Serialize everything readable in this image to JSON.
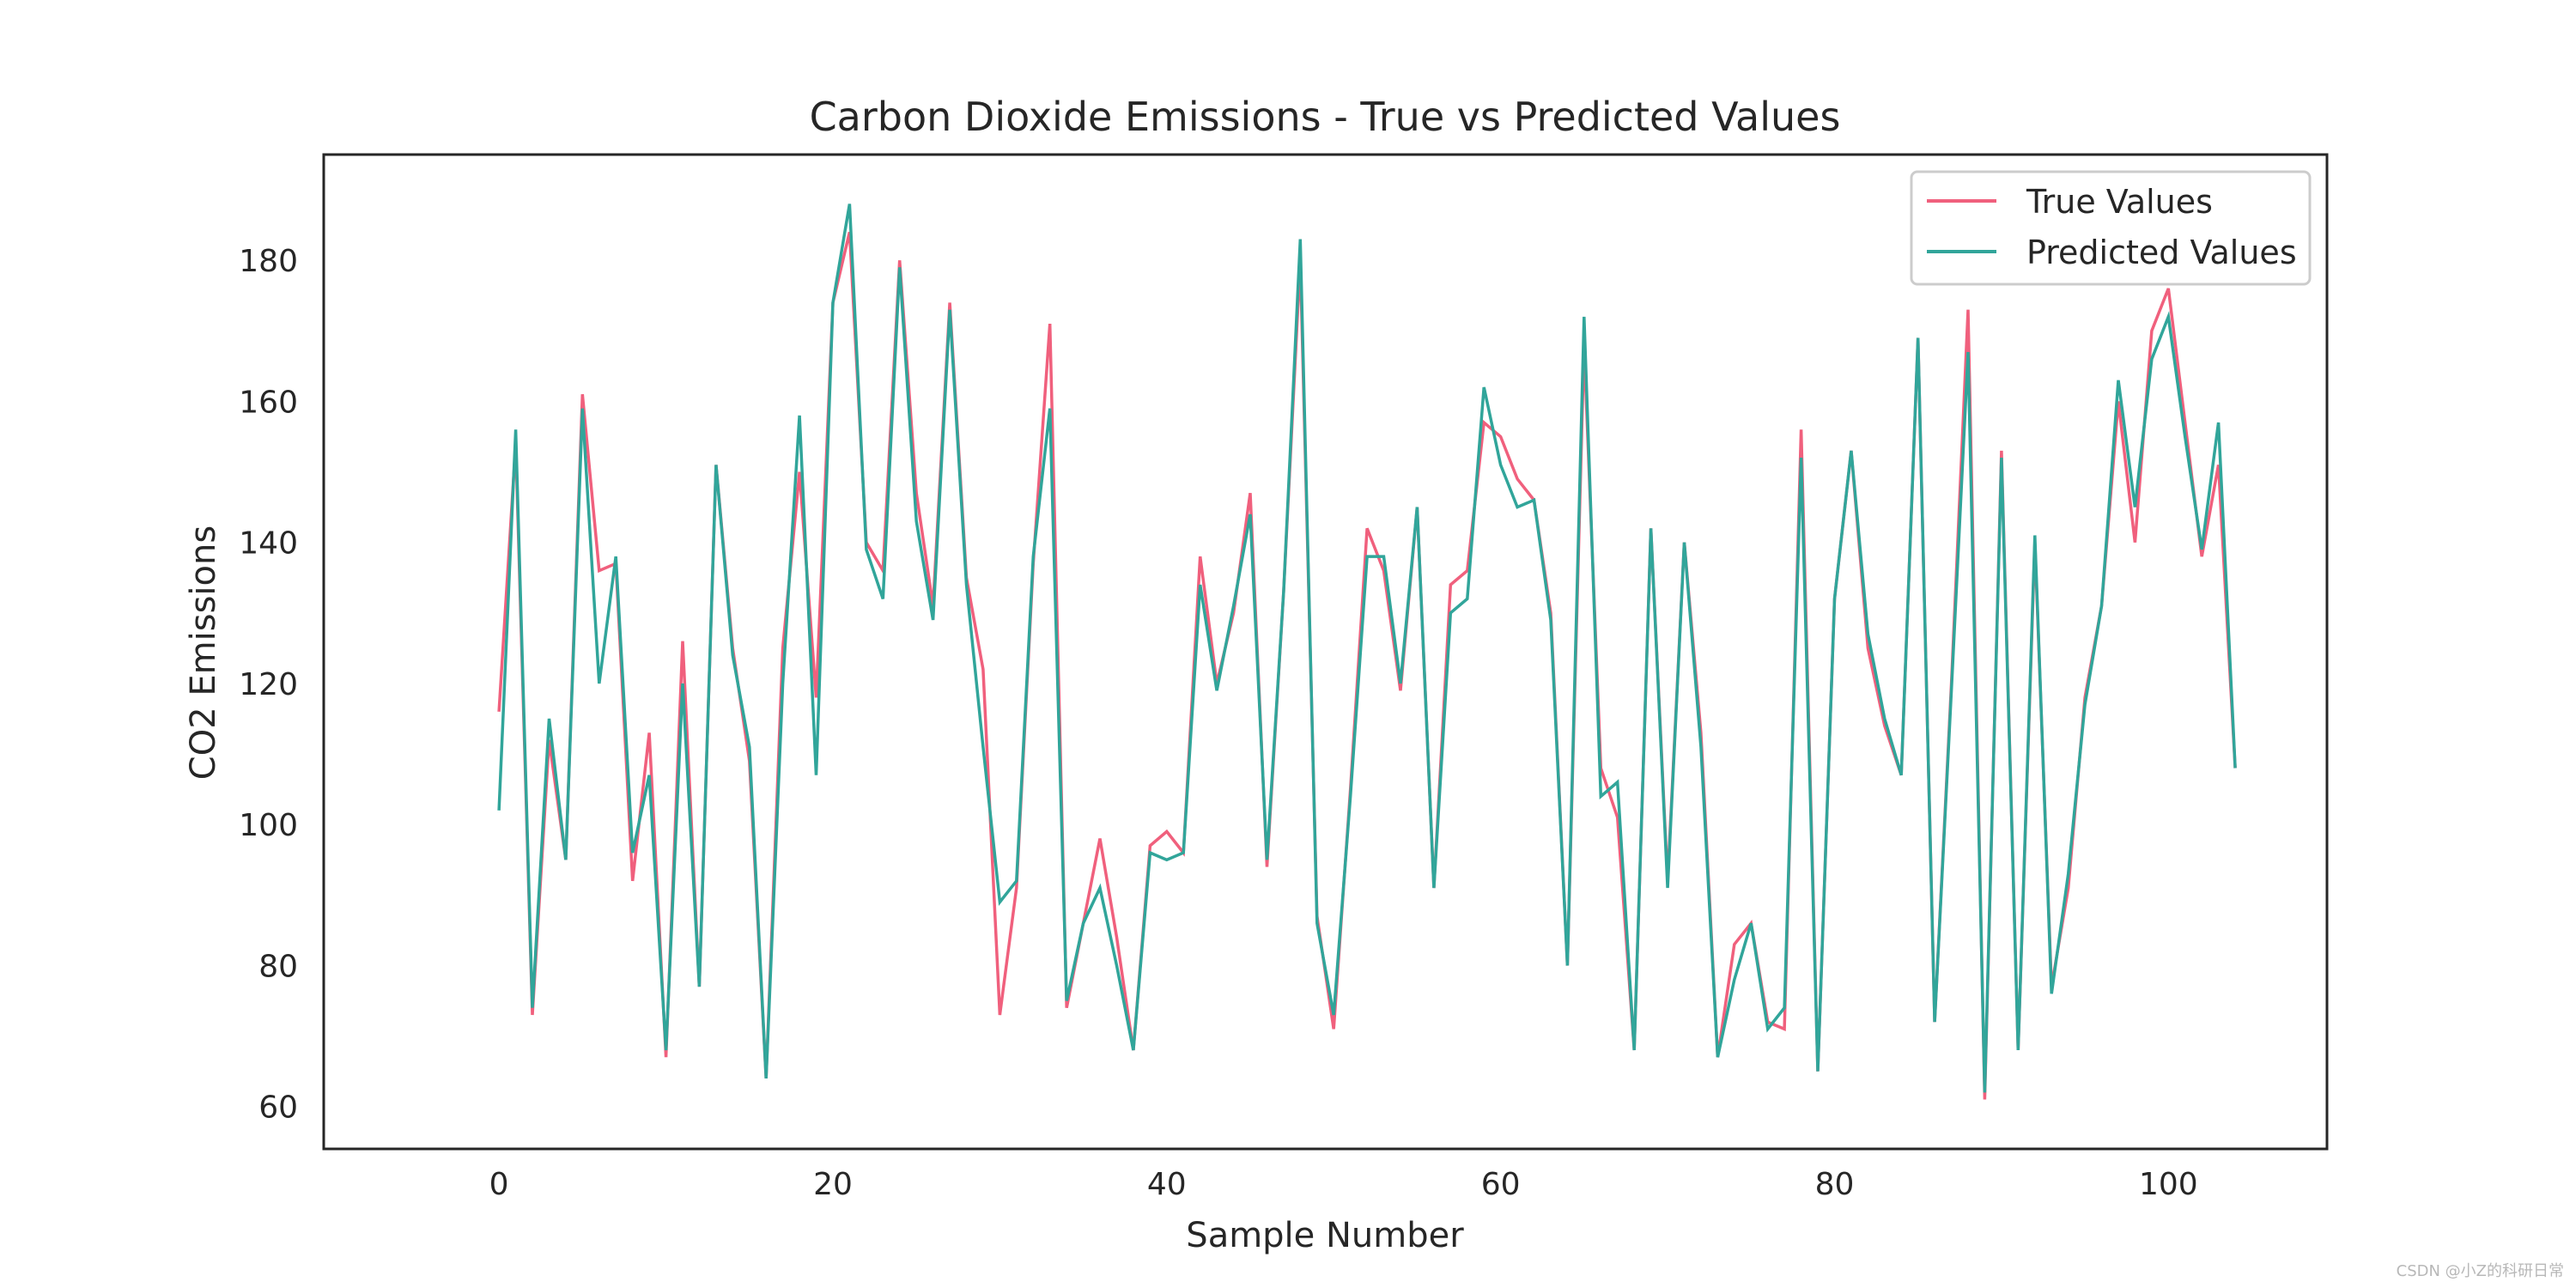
{
  "chart_data": {
    "type": "line",
    "title": "Carbon Dioxide Emissions - True vs Predicted Values",
    "xlabel": "Sample Number",
    "ylabel": "CO2 Emissions",
    "xlim": [
      -10.5,
      109.5
    ],
    "ylim": [
      54,
      195
    ],
    "xticks": [
      0,
      20,
      40,
      60,
      80,
      100
    ],
    "yticks": [
      60,
      80,
      100,
      120,
      140,
      160,
      180
    ],
    "grid": false,
    "legend_position": "top-right",
    "series": [
      {
        "name": "True Values",
        "color": "#f0607d",
        "values": [
          116,
          154,
          73,
          112,
          95,
          161,
          136,
          137,
          92,
          113,
          67,
          126,
          77,
          151,
          125,
          109,
          64,
          125,
          150,
          118,
          174,
          184,
          140,
          136,
          180,
          147,
          131,
          174,
          135,
          122,
          73,
          91,
          137,
          171,
          74,
          86,
          98,
          84,
          68,
          97,
          99,
          96,
          138,
          120,
          130,
          147,
          94,
          133,
          180,
          87,
          71,
          105,
          142,
          136,
          119,
          145,
          91,
          134,
          136,
          157,
          155,
          149,
          146,
          130,
          80,
          168,
          108,
          101,
          68,
          142,
          92,
          140,
          113,
          67,
          83,
          86,
          72,
          71,
          156,
          65,
          132,
          153,
          125,
          114,
          107,
          169,
          72,
          120,
          173,
          61,
          153,
          68,
          140,
          77,
          91,
          118,
          131,
          160,
          140,
          170,
          176,
          157,
          138,
          151,
          108
        ]
      },
      {
        "name": "Predicted Values",
        "color": "#31a59a",
        "values": [
          102,
          156,
          74,
          115,
          95,
          159,
          120,
          138,
          96,
          107,
          68,
          120,
          77,
          151,
          124,
          111,
          64,
          120,
          158,
          107,
          174,
          188,
          139,
          132,
          179,
          143,
          129,
          173,
          134,
          111,
          89,
          92,
          138,
          159,
          75,
          86,
          91,
          80,
          68,
          96,
          95,
          96,
          134,
          119,
          131,
          144,
          95,
          133,
          183,
          86,
          73,
          104,
          138,
          138,
          120,
          145,
          91,
          130,
          132,
          162,
          151,
          145,
          146,
          129,
          80,
          172,
          104,
          106,
          68,
          142,
          91,
          140,
          111,
          67,
          78,
          86,
          71,
          74,
          152,
          65,
          132,
          153,
          127,
          115,
          107,
          169,
          72,
          119,
          167,
          62,
          152,
          68,
          141,
          76,
          93,
          117,
          131,
          163,
          145,
          166,
          172,
          155,
          139,
          157,
          108
        ]
      }
    ]
  },
  "watermark": "CSDN @小Z的科研日常"
}
